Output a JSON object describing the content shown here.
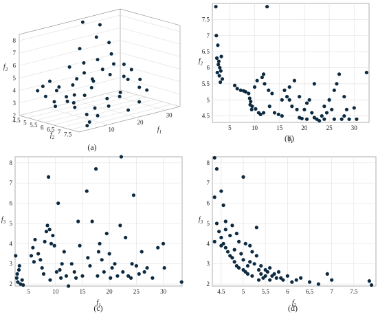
{
  "chart_data": [
    {
      "id": "a",
      "type": "scatter3d",
      "panel_label": "(a)",
      "xlabel": "f2",
      "ylabel": "f1",
      "zlabel": "f3",
      "xlim": [
        4.5,
        8
      ],
      "ylim": [
        0,
        35
      ],
      "zlim": [
        2,
        8.5
      ],
      "xticks": [
        "4.5",
        "5",
        "5.5",
        "6",
        "6.5",
        "7",
        "7.5"
      ],
      "yticks": [
        "10",
        "20",
        "30"
      ],
      "zticks": [
        "2",
        "3",
        "4",
        "5",
        "6",
        "7",
        "8"
      ],
      "grid": true,
      "points": [
        [
          4.9,
          4,
          3.9
        ],
        [
          4.6,
          10,
          4.2
        ],
        [
          4.8,
          12,
          3.7
        ],
        [
          5.2,
          8,
          2.9
        ],
        [
          5.4,
          11,
          3.2
        ],
        [
          5.5,
          14,
          4.5
        ],
        [
          5.8,
          9,
          3.1
        ],
        [
          5.6,
          16,
          4.9
        ],
        [
          4.4,
          18,
          4.8
        ],
        [
          5.0,
          18,
          6.5
        ],
        [
          5.3,
          22,
          7.3
        ],
        [
          4.5,
          22,
          8.2
        ],
        [
          5.0,
          25,
          8.0
        ],
        [
          5.7,
          24,
          6.9
        ],
        [
          6.0,
          20,
          5.1
        ],
        [
          5.9,
          28,
          5.0
        ],
        [
          6.2,
          15,
          4.0
        ],
        [
          6.4,
          25,
          4.4
        ],
        [
          6.5,
          30,
          3.9
        ],
        [
          6.8,
          28,
          3.5
        ],
        [
          7.0,
          20,
          3.3
        ],
        [
          7.2,
          15,
          2.9
        ],
        [
          7.4,
          10,
          2.5
        ],
        [
          7.6,
          6,
          2.3
        ],
        [
          7.8,
          4,
          2.2
        ],
        [
          6.0,
          10,
          3.0
        ],
        [
          5.5,
          26,
          5.8
        ],
        [
          6.3,
          12,
          3.6
        ],
        [
          5.1,
          15,
          3.8
        ],
        [
          5.3,
          28,
          4.8
        ],
        [
          6.6,
          18,
          3.1
        ],
        [
          6.9,
          12,
          2.8
        ],
        [
          7.1,
          8,
          2.6
        ],
        [
          5.2,
          5,
          3.5
        ],
        [
          4.7,
          7,
          4.0
        ],
        [
          5.8,
          18,
          4.2
        ],
        [
          6.1,
          22,
          4.6
        ],
        [
          6.7,
          22,
          3.4
        ],
        [
          5.4,
          20,
          4.1
        ],
        [
          6.3,
          27,
          4.0
        ],
        [
          5.0,
          10,
          3.6
        ],
        [
          4.9,
          20,
          5.2
        ],
        [
          5.6,
          6,
          2.8
        ],
        [
          6.9,
          30,
          3.2
        ],
        [
          7.3,
          25,
          2.7
        ],
        [
          7.5,
          20,
          2.4
        ],
        [
          6.0,
          30,
          4.5
        ],
        [
          5.7,
          12,
          3.4
        ],
        [
          5.2,
          23,
          5.4
        ],
        [
          6.4,
          8,
          2.9
        ]
      ]
    },
    {
      "id": "b",
      "type": "scatter",
      "panel_label": "(b)",
      "xlabel": "f1",
      "ylabel": "f2",
      "xlim": [
        1.5,
        33
      ],
      "ylim": [
        4.3,
        8
      ],
      "xticks": [
        5,
        10,
        15,
        20,
        25,
        30
      ],
      "yticks": [
        4.5,
        5,
        5.5,
        6,
        6.5,
        7,
        7.5
      ],
      "grid": true,
      "points": [
        [
          2.2,
          7.9
        ],
        [
          2.3,
          7.0
        ],
        [
          2.6,
          6.7
        ],
        [
          2.4,
          6.3
        ],
        [
          2.7,
          6.1
        ],
        [
          3.0,
          6.0
        ],
        [
          3.2,
          5.9
        ],
        [
          2.9,
          5.75
        ],
        [
          2.5,
          5.85
        ],
        [
          3.5,
          5.65
        ],
        [
          3.1,
          5.55
        ],
        [
          3.3,
          6.35
        ],
        [
          2.8,
          6.2
        ],
        [
          12.5,
          7.9
        ],
        [
          32.5,
          5.85
        ],
        [
          6,
          5.45
        ],
        [
          6.5,
          5.35
        ],
        [
          7.2,
          5.3
        ],
        [
          7.8,
          5.28
        ],
        [
          8.2,
          5.25
        ],
        [
          8.8,
          5.2
        ],
        [
          9.0,
          5.05
        ],
        [
          9.2,
          4.95
        ],
        [
          9.1,
          4.85
        ],
        [
          9.5,
          4.8
        ],
        [
          9.4,
          4.7
        ],
        [
          10.2,
          4.72
        ],
        [
          10.8,
          4.6
        ],
        [
          11.2,
          4.55
        ],
        [
          11.8,
          4.6
        ],
        [
          10.0,
          5.4
        ],
        [
          10.5,
          5.6
        ],
        [
          11.5,
          5.7
        ],
        [
          11.8,
          5.8
        ],
        [
          12.0,
          5.5
        ],
        [
          12.8,
          5.3
        ],
        [
          13.5,
          5.2
        ],
        [
          14.0,
          4.6
        ],
        [
          14.8,
          4.55
        ],
        [
          15.5,
          4.5
        ],
        [
          16.0,
          5.3
        ],
        [
          16.5,
          5.1
        ],
        [
          17.0,
          5.0
        ],
        [
          17.5,
          4.8
        ],
        [
          18.0,
          5.6
        ],
        [
          18.5,
          4.7
        ],
        [
          19.0,
          4.45
        ],
        [
          19.5,
          4.42
        ],
        [
          20.0,
          4.7
        ],
        [
          20.5,
          4.9
        ],
        [
          21.0,
          5.0
        ],
        [
          21.5,
          4.6
        ],
        [
          22.0,
          4.45
        ],
        [
          22.5,
          4.4
        ],
        [
          23.0,
          4.35
        ],
        [
          23.5,
          4.5
        ],
        [
          24.0,
          4.8
        ],
        [
          24.5,
          4.6
        ],
        [
          25.0,
          5.0
        ],
        [
          25.5,
          4.7
        ],
        [
          26.0,
          5.3
        ],
        [
          26.5,
          5.5
        ],
        [
          27.0,
          5.8
        ],
        [
          27.5,
          4.4
        ],
        [
          28.0,
          4.5
        ],
        [
          28.5,
          4.7
        ],
        [
          29.0,
          4.4
        ],
        [
          30.0,
          4.75
        ],
        [
          30.5,
          4.4
        ],
        [
          22.0,
          5.5
        ],
        [
          19.0,
          5.1
        ],
        [
          15.5,
          5.0
        ],
        [
          24.0,
          4.4
        ],
        [
          13.0,
          4.8
        ],
        [
          17.0,
          5.4
        ],
        [
          20.5,
          4.4
        ],
        [
          26.0,
          4.4
        ],
        [
          28.0,
          5.1
        ]
      ]
    },
    {
      "id": "c",
      "type": "scatter",
      "panel_label": "(c)",
      "xlabel": "f1",
      "ylabel": "f3",
      "xlim": [
        2.5,
        33.5
      ],
      "ylim": [
        1.9,
        8.3
      ],
      "xticks": [
        5,
        10,
        15,
        20,
        25,
        30
      ],
      "yticks": [
        2,
        3,
        4,
        5,
        6,
        7,
        8
      ],
      "grid": true,
      "points": [
        [
          2.6,
          3.4
        ],
        [
          2.8,
          2.3
        ],
        [
          3.0,
          2.1
        ],
        [
          3.2,
          2.7
        ],
        [
          3.5,
          2.0
        ],
        [
          3.8,
          2.2
        ],
        [
          4.0,
          1.95
        ],
        [
          2.9,
          2.5
        ],
        [
          3.3,
          2.9
        ],
        [
          5.5,
          3.4
        ],
        [
          5.8,
          3.8
        ],
        [
          6.2,
          4.2
        ],
        [
          6.8,
          3.5
        ],
        [
          7.2,
          3.2
        ],
        [
          7.5,
          2.8
        ],
        [
          8.0,
          4.1
        ],
        [
          8.3,
          4.6
        ],
        [
          8.5,
          4.9
        ],
        [
          8.7,
          7.3
        ],
        [
          8.9,
          4.7
        ],
        [
          9.2,
          4.0
        ],
        [
          9.5,
          4.4
        ],
        [
          9.8,
          3.9
        ],
        [
          10.2,
          2.6
        ],
        [
          10.5,
          6.0
        ],
        [
          10.8,
          2.7
        ],
        [
          11.2,
          3.0
        ],
        [
          11.6,
          3.6
        ],
        [
          12.0,
          2.4
        ],
        [
          12.4,
          1.9
        ],
        [
          13.0,
          3.0
        ],
        [
          13.5,
          2.6
        ],
        [
          14.2,
          5.1
        ],
        [
          14.5,
          3.9
        ],
        [
          15.0,
          2.4
        ],
        [
          15.8,
          6.6
        ],
        [
          16.0,
          3.3
        ],
        [
          16.4,
          2.9
        ],
        [
          16.8,
          5.1
        ],
        [
          17.5,
          7.7
        ],
        [
          17.8,
          2.4
        ],
        [
          18.2,
          4.0
        ],
        [
          18.6,
          3.2
        ],
        [
          19.0,
          2.6
        ],
        [
          19.5,
          4.5
        ],
        [
          20.0,
          3.5
        ],
        [
          20.5,
          2.8
        ],
        [
          21.0,
          3.0
        ],
        [
          21.5,
          2.4
        ],
        [
          22.0,
          4.9
        ],
        [
          22.2,
          8.3
        ],
        [
          22.5,
          2.6
        ],
        [
          23.0,
          4.3
        ],
        [
          23.5,
          2.4
        ],
        [
          24.0,
          2.3
        ],
        [
          24.5,
          6.4
        ],
        [
          25.0,
          2.9
        ],
        [
          25.5,
          2.5
        ],
        [
          26.0,
          3.6
        ],
        [
          26.5,
          2.6
        ],
        [
          27.0,
          2.8
        ],
        [
          28.0,
          2.3
        ],
        [
          29.0,
          3.8
        ],
        [
          30.0,
          4.0
        ],
        [
          30.2,
          2.8
        ],
        [
          33.4,
          2.1
        ],
        [
          9.0,
          2.2
        ],
        [
          11.0,
          2.3
        ],
        [
          13.8,
          2.3
        ],
        [
          18.0,
          3.6
        ],
        [
          24.2,
          3.0
        ],
        [
          20.2,
          2.3
        ],
        [
          6.0,
          3.1
        ],
        [
          7.8,
          2.5
        ]
      ]
    },
    {
      "id": "d",
      "type": "scatter",
      "panel_label": "(d)",
      "xlabel": "f2",
      "ylabel": "f3",
      "xlim": [
        4.3,
        8.0
      ],
      "ylim": [
        1.9,
        8.3
      ],
      "xticks": [
        4.5,
        5,
        5.5,
        6,
        6.5,
        7,
        7.5
      ],
      "yticks": [
        2,
        3,
        4,
        5,
        6,
        7,
        8
      ],
      "grid": true,
      "points": [
        [
          4.35,
          8.25
        ],
        [
          4.4,
          7.7
        ],
        [
          4.35,
          6.3
        ],
        [
          4.5,
          6.6
        ],
        [
          4.55,
          5.9
        ],
        [
          4.6,
          5.1
        ],
        [
          4.4,
          5.0
        ],
        [
          4.45,
          4.6
        ],
        [
          4.5,
          4.3
        ],
        [
          4.35,
          4.1
        ],
        [
          4.55,
          4.0
        ],
        [
          4.6,
          3.8
        ],
        [
          4.65,
          3.6
        ],
        [
          4.7,
          3.4
        ],
        [
          4.75,
          3.3
        ],
        [
          4.8,
          3.1
        ],
        [
          4.85,
          2.9
        ],
        [
          4.9,
          2.8
        ],
        [
          4.95,
          3.5
        ],
        [
          5.0,
          7.3
        ],
        [
          5.0,
          2.7
        ],
        [
          5.05,
          2.6
        ],
        [
          5.1,
          2.5
        ],
        [
          5.15,
          3.9
        ],
        [
          5.2,
          2.4
        ],
        [
          5.25,
          3.0
        ],
        [
          5.3,
          4.8
        ],
        [
          5.35,
          2.7
        ],
        [
          5.4,
          2.5
        ],
        [
          5.45,
          2.3
        ],
        [
          5.5,
          2.4
        ],
        [
          5.55,
          2.6
        ],
        [
          5.6,
          2.2
        ],
        [
          5.65,
          2.4
        ],
        [
          5.7,
          2.5
        ],
        [
          5.75,
          2.3
        ],
        [
          5.8,
          2.6
        ],
        [
          5.85,
          2.3
        ],
        [
          5.9,
          2.2
        ],
        [
          6.0,
          2.4
        ],
        [
          6.1,
          2.1
        ],
        [
          6.2,
          2.2
        ],
        [
          6.3,
          2.3
        ],
        [
          6.5,
          2.1
        ],
        [
          6.7,
          2.0
        ],
        [
          6.9,
          2.5
        ],
        [
          7.0,
          2.2
        ],
        [
          7.9,
          1.95
        ],
        [
          7.85,
          2.15
        ],
        [
          4.8,
          3.7
        ],
        [
          4.9,
          4.1
        ],
        [
          5.0,
          3.2
        ],
        [
          5.1,
          2.9
        ],
        [
          4.7,
          4.4
        ],
        [
          4.6,
          4.7
        ],
        [
          5.3,
          3.4
        ],
        [
          5.2,
          3.6
        ],
        [
          4.85,
          4.5
        ],
        [
          5.4,
          2.9
        ],
        [
          5.5,
          2.7
        ],
        [
          4.5,
          3.9
        ],
        [
          4.75,
          4.9
        ],
        [
          5.05,
          4.0
        ],
        [
          5.15,
          3.1
        ],
        [
          5.6,
          2.8
        ],
        [
          5.35,
          2.2
        ]
      ]
    }
  ]
}
